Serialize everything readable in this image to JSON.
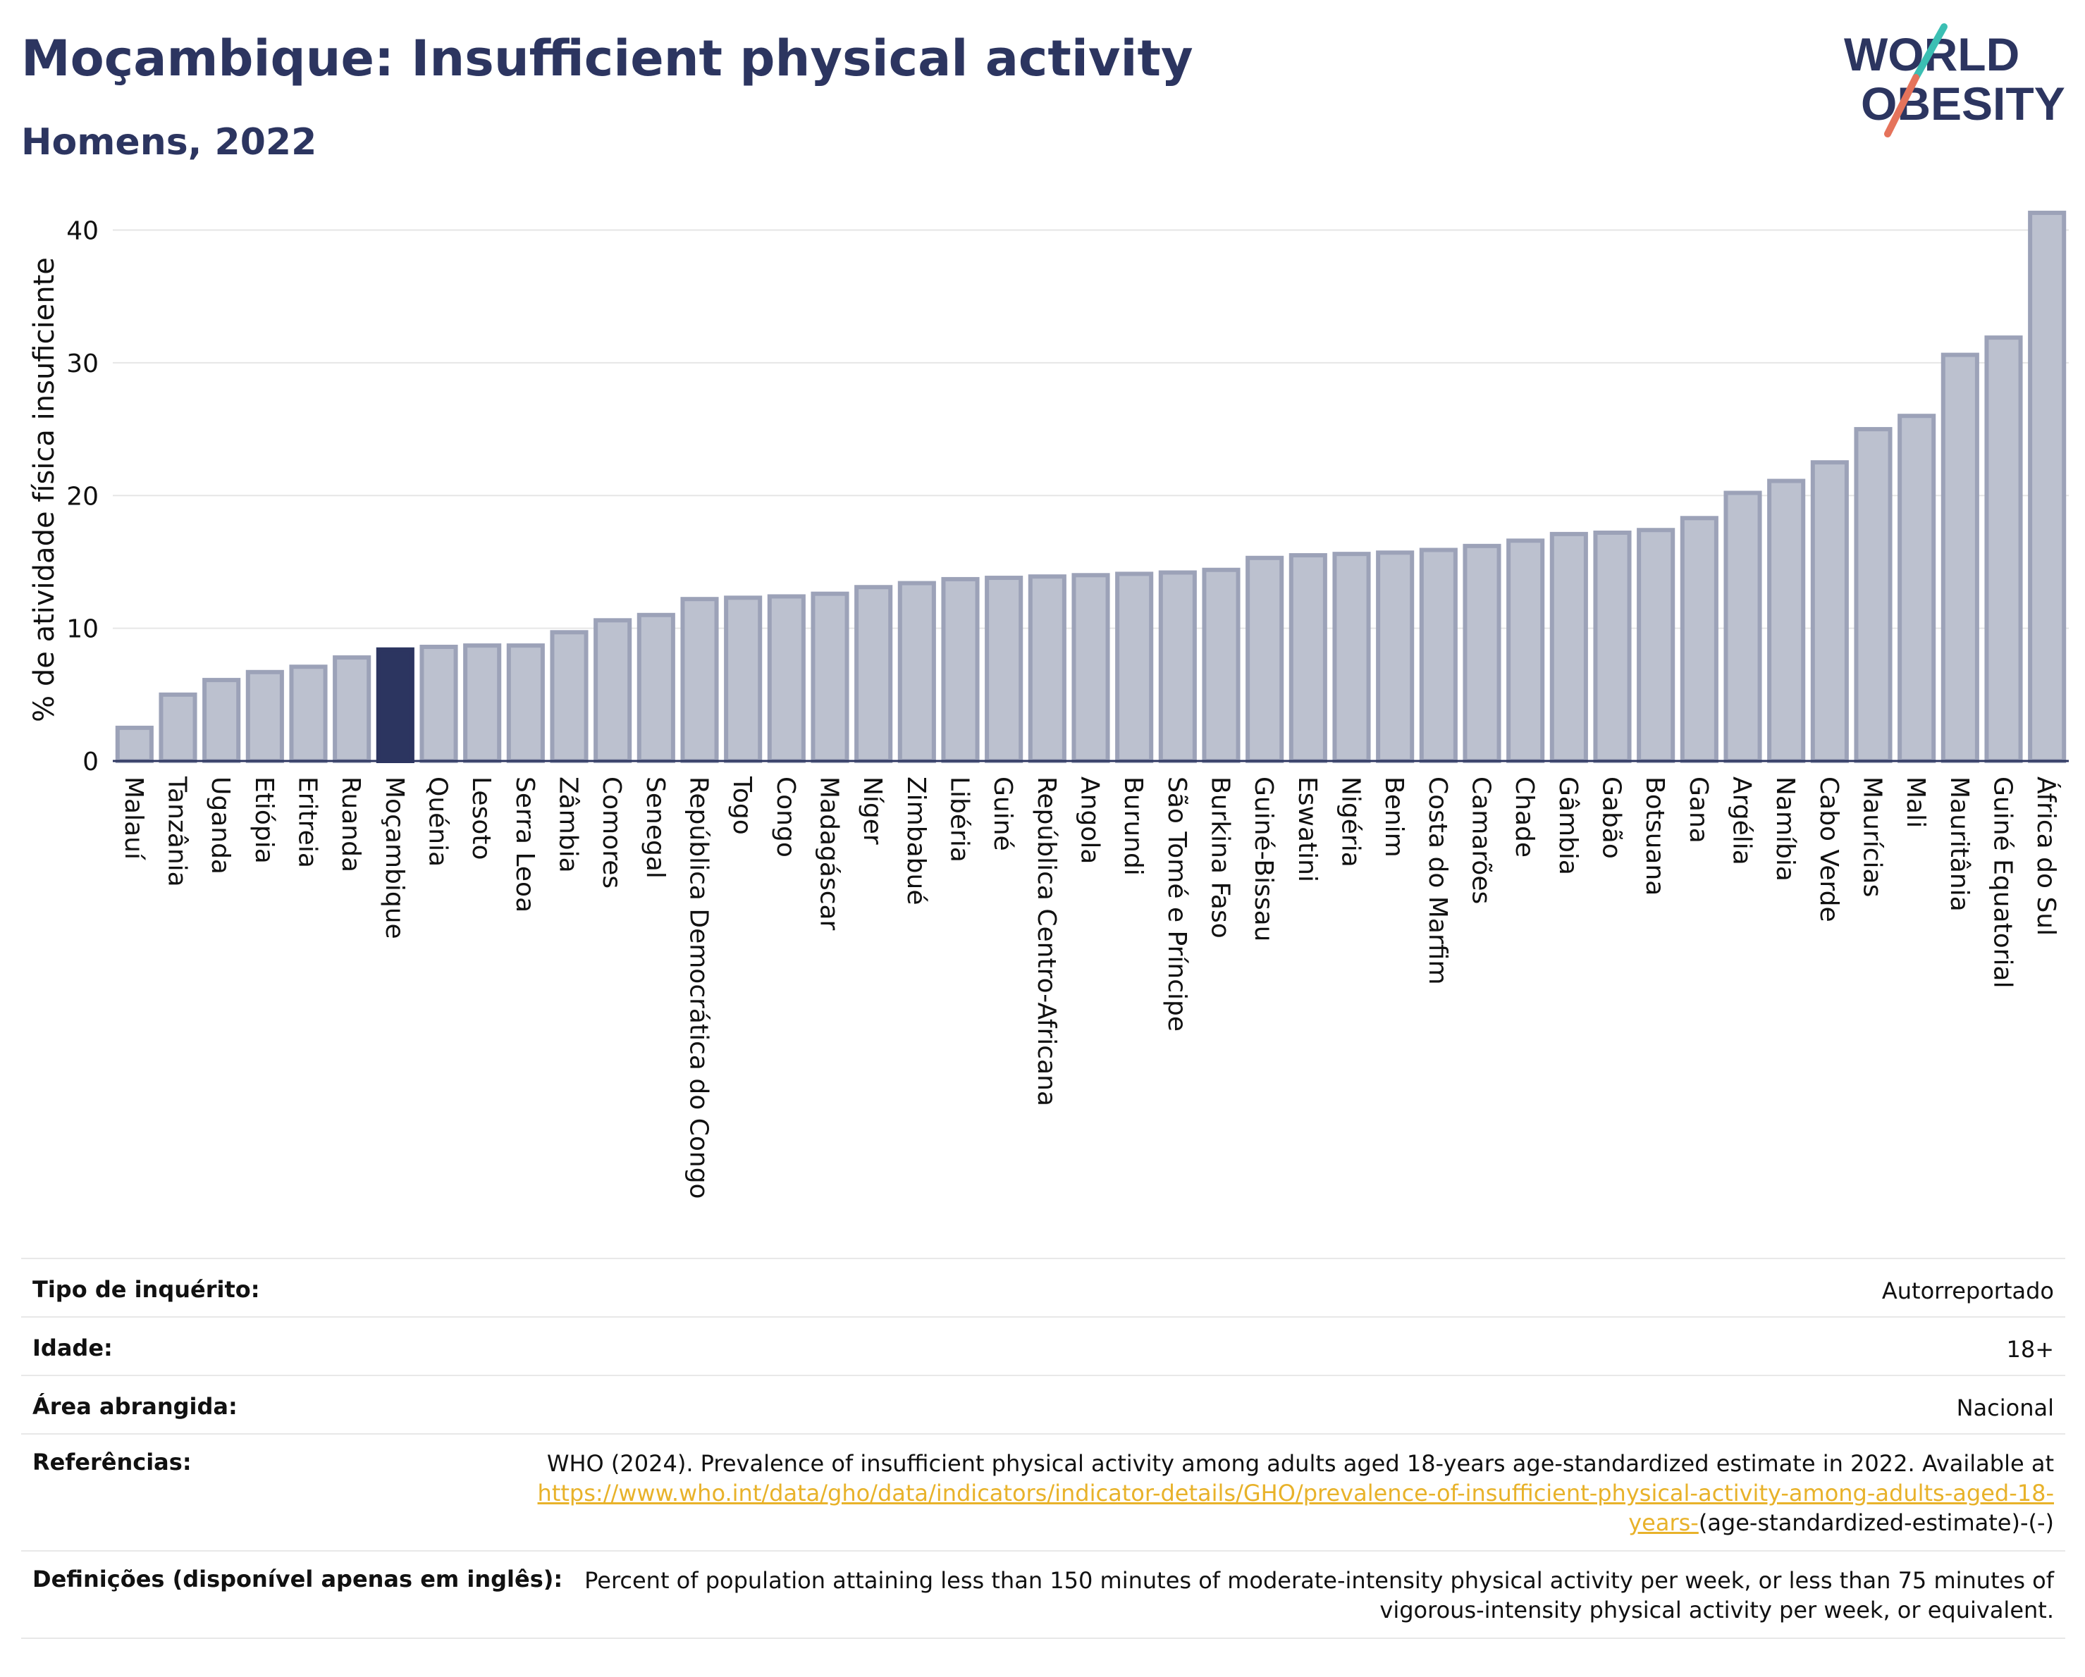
{
  "header": {
    "title": "Moçambique: Insufficient physical activity",
    "subtitle": "Homens, 2022"
  },
  "logo": {
    "line1": "WORLD",
    "line2": "OBESITY",
    "colors": {
      "text": "#2c3560",
      "slash_top": "#3bbfb3",
      "slash_bottom": "#e5735b"
    }
  },
  "chart_data": {
    "type": "bar",
    "title": "",
    "xlabel": "",
    "ylabel": "% de atividade física insuficiente",
    "ylim": [
      0,
      43
    ],
    "yticks": [
      0,
      10,
      20,
      30,
      40
    ],
    "grid": true,
    "highlight": "Moçambique",
    "colors": {
      "bar": "#bcc1cf",
      "bar_edge": "#9ca2b8",
      "highlight": "#2c3560"
    },
    "categories": [
      "Malauí",
      "Tanzânia",
      "Uganda",
      "Etiópia",
      "Eritreia",
      "Ruanda",
      "Moçambique",
      "Quénia",
      "Lesoto",
      "Serra Leoa",
      "Zâmbia",
      "Comores",
      "Senegal",
      "República Democrática do Congo",
      "Togo",
      "Congo",
      "Madagáscar",
      "Níger",
      "Zimbabué",
      "Libéria",
      "Guiné",
      "República Centro-Africana",
      "Angola",
      "Burundi",
      "São Tomé e Príncipe",
      "Burkina Faso",
      "Guiné-Bissau",
      "Eswatini",
      "Nigéria",
      "Benim",
      "Costa do Marfim",
      "Camarões",
      "Chade",
      "Gâmbia",
      "Gabão",
      "Botsuana",
      "Gana",
      "Argélia",
      "Namíbia",
      "Cabo Verde",
      "Maurícias",
      "Mali",
      "Mauritânia",
      "Guiné Equatorial",
      "África do Sul"
    ],
    "values": [
      2.5,
      5.0,
      6.1,
      6.7,
      7.1,
      7.8,
      8.4,
      8.6,
      8.7,
      8.7,
      9.7,
      10.6,
      11.0,
      12.2,
      12.3,
      12.4,
      12.6,
      13.1,
      13.4,
      13.7,
      13.8,
      13.9,
      14.0,
      14.1,
      14.2,
      14.4,
      15.3,
      15.5,
      15.6,
      15.7,
      15.9,
      16.2,
      16.6,
      17.1,
      17.2,
      17.4,
      18.3,
      20.2,
      21.1,
      22.5,
      25.0,
      26.0,
      30.6,
      31.9,
      41.3
    ]
  },
  "details": [
    {
      "label": "Tipo de inquérito:",
      "value": "Autorreportado"
    },
    {
      "label": "Idade:",
      "value": "18+"
    },
    {
      "label": "Área abrangida:",
      "value": "Nacional"
    },
    {
      "label": "Referências:",
      "value_pre": "WHO (2024). Prevalence of insufficient physical activity among adults aged 18-years age-standardized estimate in 2022. Available at",
      "link": "https://www.who.int/data/gho/data/indicators/indicator-details/GHO/prevalence-of-insufficient-physical-activity-among-adults-aged-18-years-",
      "value_post": "(age-standardized-estimate)-(-)"
    },
    {
      "label": "Definições (disponível apenas em inglês):",
      "value": "Percent of population attaining less than 150 minutes of moderate-intensity physical activity per week, or less than 75 minutes of vigorous-intensity physical activity per week, or equivalent."
    }
  ]
}
